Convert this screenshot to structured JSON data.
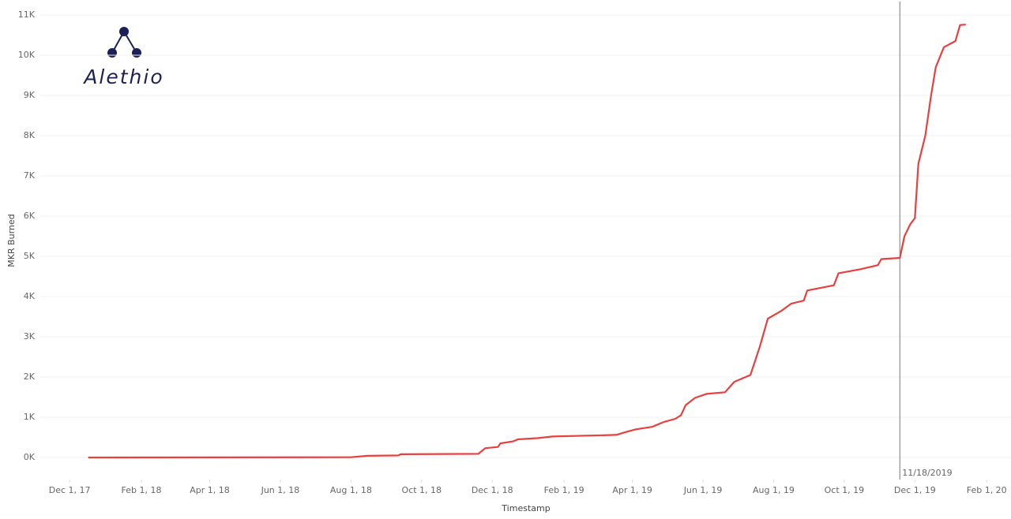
{
  "chart_data": {
    "type": "line",
    "logo": "Alethio",
    "x_label": "Timestamp",
    "y_label": "MKR Burned",
    "x": [
      "2017-12-17",
      "2018-08-01",
      "2018-08-15",
      "2018-09-11",
      "2018-09-13",
      "2018-11-19",
      "2018-11-25",
      "2018-12-06",
      "2018-12-08",
      "2018-12-19",
      "2018-12-23",
      "2019-01-09",
      "2019-01-22",
      "2019-03-18",
      "2019-03-25",
      "2019-04-04",
      "2019-04-18",
      "2019-04-28",
      "2019-05-08",
      "2019-05-13",
      "2019-05-17",
      "2019-05-25",
      "2019-06-04",
      "2019-06-20",
      "2019-06-28",
      "2019-07-12",
      "2019-07-20",
      "2019-07-27",
      "2019-08-08",
      "2019-08-16",
      "2019-08-27",
      "2019-08-30",
      "2019-09-22",
      "2019-09-26",
      "2019-10-15",
      "2019-10-30",
      "2019-11-02",
      "2019-11-18",
      "2019-11-22",
      "2019-11-27",
      "2019-12-01",
      "2019-12-04",
      "2019-12-10",
      "2019-12-15",
      "2019-12-19",
      "2019-12-26",
      "2020-01-05",
      "2020-01-09",
      "2020-01-14"
    ],
    "series": [
      {
        "color": "#e8403f",
        "values": [
          0,
          5,
          40,
          50,
          80,
          90,
          230,
          260,
          350,
          400,
          450,
          480,
          520,
          560,
          620,
          700,
          760,
          880,
          960,
          1050,
          1300,
          1480,
          1580,
          1620,
          1880,
          2050,
          2750,
          3450,
          3650,
          3820,
          3900,
          4150,
          4280,
          4580,
          4680,
          4780,
          4930,
          4960,
          5500,
          5800,
          5950,
          7300,
          8000,
          9000,
          9700,
          10200,
          10350,
          10750,
          10760
        ]
      }
    ],
    "xlim": [
      "2017-11-05",
      "2020-02-22"
    ],
    "xticks": [
      {
        "value": "2017-12-01",
        "label": "Dec 1, 17"
      },
      {
        "value": "2018-02-01",
        "label": "Feb 1, 18"
      },
      {
        "value": "2018-04-01",
        "label": "Apr 1, 18"
      },
      {
        "value": "2018-06-01",
        "label": "Jun 1, 18"
      },
      {
        "value": "2018-08-01",
        "label": "Aug 1, 18"
      },
      {
        "value": "2018-10-01",
        "label": "Oct 1, 18"
      },
      {
        "value": "2018-12-01",
        "label": "Dec 1, 18"
      },
      {
        "value": "2019-02-01",
        "label": "Feb 1, 19"
      },
      {
        "value": "2019-04-01",
        "label": "Apr 1, 19"
      },
      {
        "value": "2019-06-01",
        "label": "Jun 1, 19"
      },
      {
        "value": "2019-08-01",
        "label": "Aug 1, 19"
      },
      {
        "value": "2019-10-01",
        "label": "Oct 1, 19"
      },
      {
        "value": "2019-12-01",
        "label": "Dec 1, 19"
      },
      {
        "value": "2020-02-01",
        "label": "Feb 1, 20"
      }
    ],
    "ylim": [
      -550,
      11000
    ],
    "yticks": [
      {
        "value": 0,
        "label": "0K"
      },
      {
        "value": 1000,
        "label": "1K"
      },
      {
        "value": 2000,
        "label": "2K"
      },
      {
        "value": 3000,
        "label": "3K"
      },
      {
        "value": 4000,
        "label": "4K"
      },
      {
        "value": 5000,
        "label": "5K"
      },
      {
        "value": 6000,
        "label": "6K"
      },
      {
        "value": 7000,
        "label": "7K"
      },
      {
        "value": 8000,
        "label": "8K"
      },
      {
        "value": 9000,
        "label": "9K"
      },
      {
        "value": 10000,
        "label": "10K"
      },
      {
        "value": 11000,
        "label": "11K"
      }
    ],
    "grid": true,
    "reference_line": {
      "x": "2019-11-18",
      "label": "11/18/2019",
      "color": "#777"
    }
  }
}
